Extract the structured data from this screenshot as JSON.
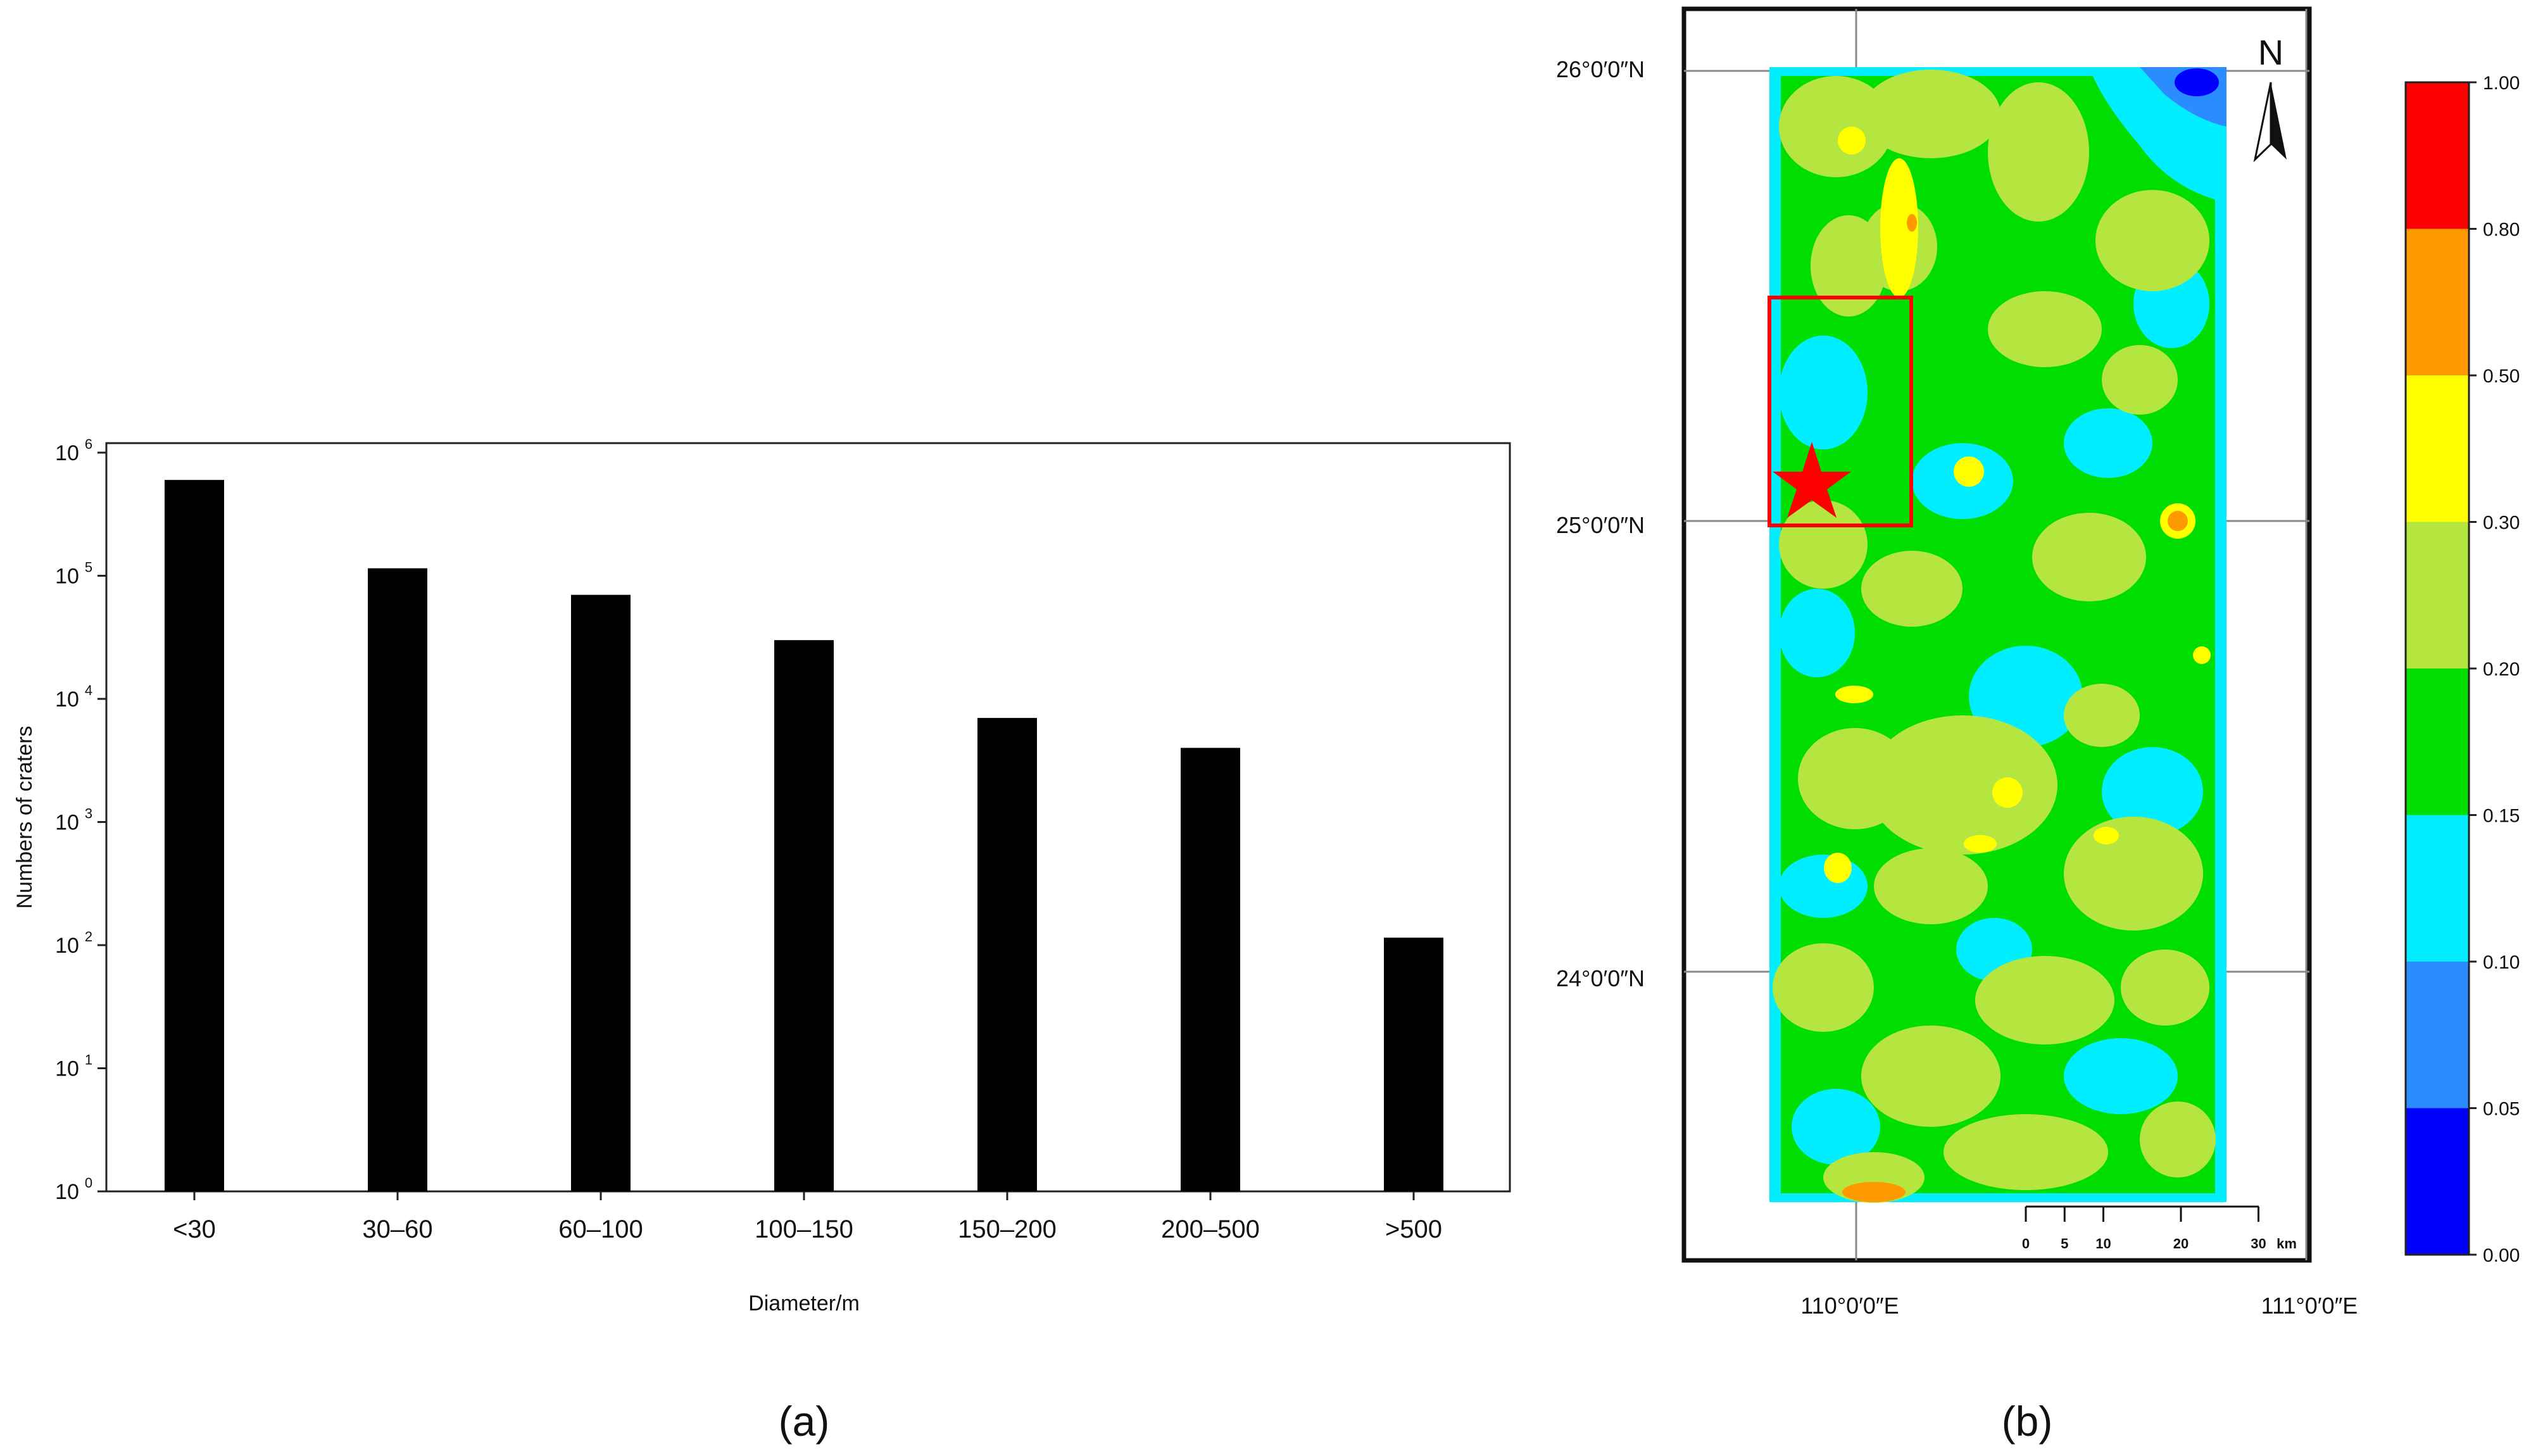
{
  "panel_a": {
    "caption": "(a)",
    "xlabel": "Diameter/m",
    "ylabel": "Numbers of craters",
    "ytick_exponents": [
      "0",
      "1",
      "2",
      "3",
      "4",
      "5",
      "6"
    ],
    "ytick_base": "10"
  },
  "panel_b": {
    "caption": "(b)",
    "north_label": "N",
    "lat_labels": [
      "26°0′0″N",
      "25°0′0″N",
      "24°0′0″N"
    ],
    "lon_labels": [
      "110°0′0″E",
      "111°0′0″E"
    ],
    "scale_ticks": [
      "0",
      "5",
      "10",
      "20",
      "30"
    ],
    "scale_unit": "km",
    "colorbar_ticks": [
      "1.00",
      "0.80",
      "0.50",
      "0.30",
      "0.20",
      "0.15",
      "0.10",
      "0.05",
      "0.00"
    ],
    "colorbar_colors": [
      "#ff0000",
      "#ff9900",
      "#ffff00",
      "#b5e640",
      "#00dd00",
      "#00eeff",
      "#2b8cff",
      "#0000ff"
    ],
    "colors": {
      "frame": "#111111",
      "study_box": "#ff0000",
      "star": "#ff0000",
      "ocean_blue": "#1e90ff"
    }
  },
  "chart_data": {
    "type": "bar",
    "categories": [
      "<30",
      "30–60",
      "60–100",
      "100–150",
      "150–200",
      "200–500",
      ">500"
    ],
    "values": [
      600000,
      115000,
      70000,
      30000,
      7000,
      4000,
      115
    ],
    "title": "",
    "xlabel": "Diameter/m",
    "ylabel": "Numbers of craters",
    "yscale": "log",
    "ylim": [
      1,
      1000000
    ],
    "grid": false,
    "bar_color": "#000000"
  }
}
